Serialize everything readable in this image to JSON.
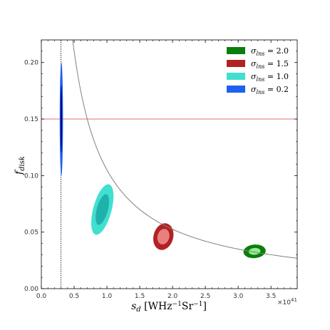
{
  "chart_data": {
    "type": "scatter",
    "title": "",
    "xlabel_main": "s",
    "xlabel_sub": "d",
    "xlabel_units": "[WHz",
    "xlabel_exp1": "−1",
    "xlabel_units2": "Sr",
    "xlabel_exp2": "−1",
    "xlabel_close": "]",
    "ylabel_main": "f",
    "ylabel_sub": "disk",
    "x_offset_label": "×10",
    "x_offset_exp": "41",
    "xlim": [
      0.0,
      3.9
    ],
    "ylim": [
      0.0,
      0.22
    ],
    "x_ticks": [
      0.0,
      0.5,
      1.0,
      1.5,
      2.0,
      2.5,
      3.0,
      3.5
    ],
    "x_tick_labels": [
      "0.0",
      "0.5",
      "1.0",
      "1.5",
      "2.0",
      "2.5",
      "3.0",
      "3.5"
    ],
    "y_ticks": [
      0.0,
      0.05,
      0.1,
      0.15,
      0.2
    ],
    "y_tick_labels": [
      "0.00",
      "0.05",
      "0.10",
      "0.15",
      "0.20"
    ],
    "hline": {
      "y": 0.15,
      "color": "#e0707a"
    },
    "vline": {
      "x": 0.3,
      "color": "#000000"
    },
    "curve": {
      "k": 0.105,
      "x_start": 0.2,
      "x_end": 3.9,
      "color": "#808080"
    },
    "legend_position": "top-right",
    "series": [
      {
        "name": "2.0",
        "color": "#0a7f0a",
        "inner": "#90ee90",
        "center": [
          3.25,
          0.033
        ],
        "outer_r": [
          0.17,
          0.006
        ],
        "inner_r": [
          0.09,
          0.003
        ],
        "angle": -5
      },
      {
        "name": "1.5",
        "color": "#b22222",
        "inner": "#e88080",
        "center": [
          1.86,
          0.046
        ],
        "outer_r": [
          0.15,
          0.012
        ],
        "inner_r": [
          0.09,
          0.007
        ],
        "angle": 15
      },
      {
        "name": "1.0",
        "color": "#40e0d0",
        "inner": "#20b2aa",
        "center": [
          0.93,
          0.07
        ],
        "outer_r": [
          0.14,
          0.023
        ],
        "inner_r": [
          0.085,
          0.014
        ],
        "angle": 15
      },
      {
        "name": "0.2",
        "color": "#1f60ee",
        "inner": "#000080",
        "center": [
          0.305,
          0.15
        ],
        "outer_r": [
          0.025,
          0.05
        ],
        "inner_r": [
          0.012,
          0.03
        ],
        "angle": 0
      }
    ],
    "legend_symbol_main": "σ",
    "legend_symbol_sub": "lns",
    "legend_eq": "="
  }
}
